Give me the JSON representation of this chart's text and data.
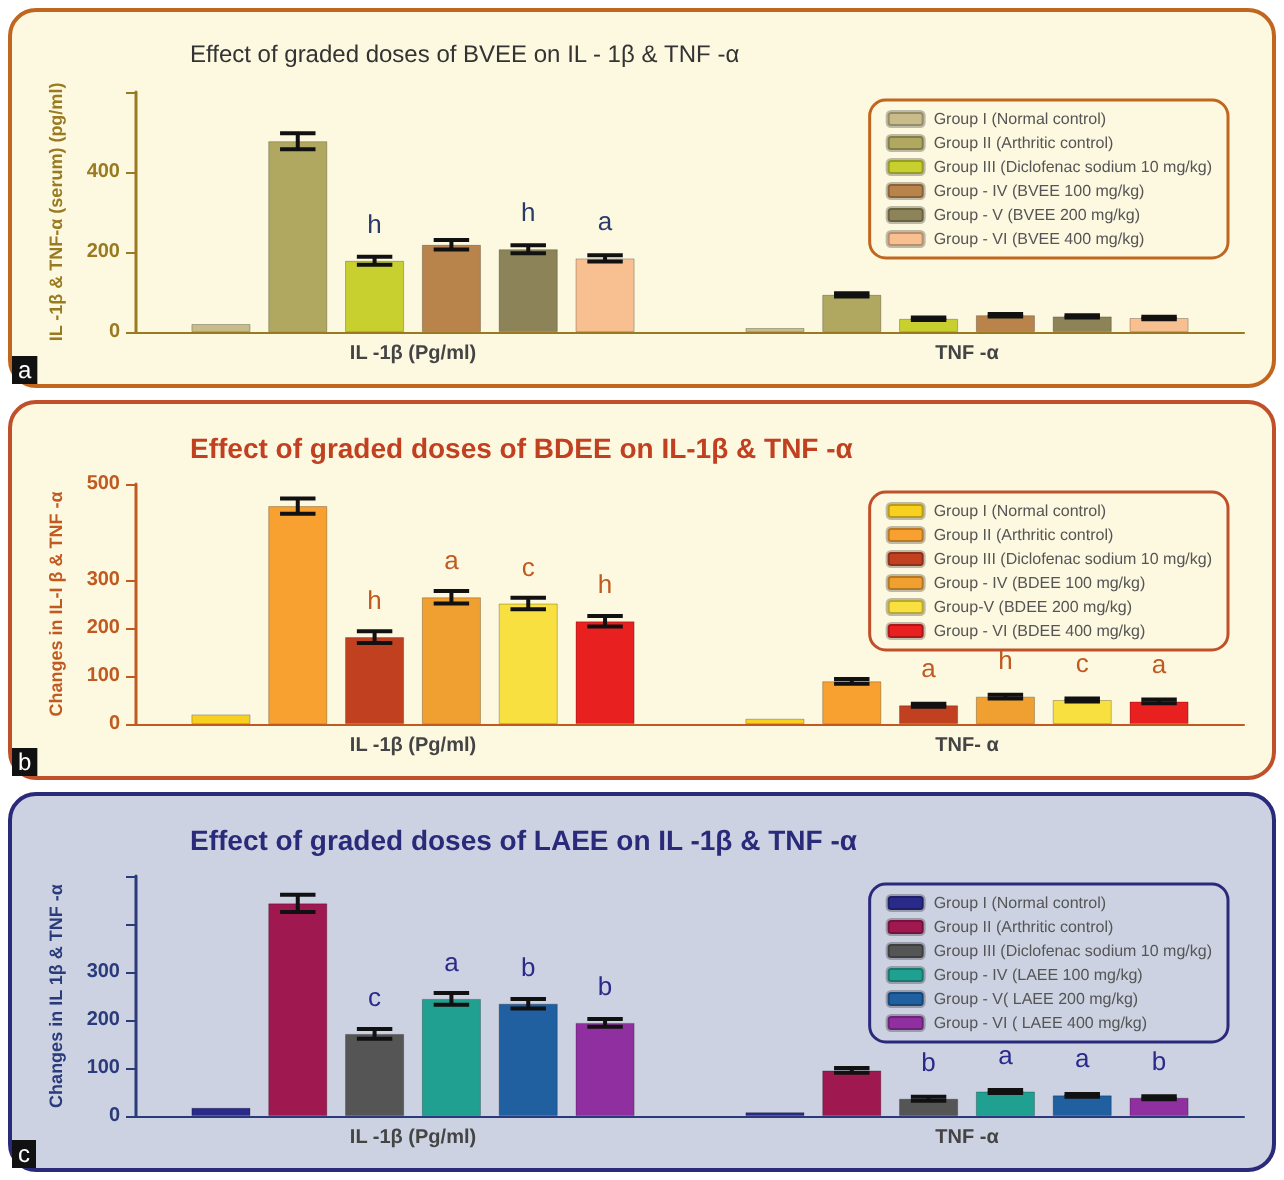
{
  "chart_data": [
    {
      "type": "bar",
      "title": "Effect of graded doses of BVEE on IL - 1β & TNF -α",
      "ylabel": "IL -1β & TNF-α (serum) (pg/ml)",
      "categories": [
        "IL -1β (Pg/ml)",
        "TNF -α"
      ],
      "series": [
        {
          "name": "Group I (Normal control)",
          "color": "#c8bd8a",
          "values": [
            20,
            10
          ]
        },
        {
          "name": "Group II (Arthritic control)",
          "color": "#b0a860",
          "values": [
            477,
            93
          ],
          "errors": [
            20,
            4
          ]
        },
        {
          "name": "Group III (Diclofenac sodium 10 mg/kg)",
          "color": "#c8d030",
          "values": [
            178,
            33
          ],
          "errors": [
            10,
            3
          ],
          "value_labels": [
            "h",
            null
          ]
        },
        {
          "name": "Group - IV (BVEE 100 mg/kg)",
          "color": "#b8844c",
          "values": [
            218,
            42
          ],
          "errors": [
            12,
            3
          ]
        },
        {
          "name": "Group - V (BVEE 200 mg/kg)",
          "color": "#8c8458",
          "values": [
            207,
            39
          ],
          "errors": [
            10,
            3
          ],
          "value_labels": [
            "h",
            null
          ]
        },
        {
          "name": "Group - VI (BVEE 400 mg/kg)",
          "color": "#f8c090",
          "values": [
            184,
            35
          ],
          "errors": [
            8,
            3
          ],
          "value_labels": [
            "a",
            null
          ]
        }
      ],
      "ylim": [
        0,
        600
      ],
      "yticks": [
        0,
        200,
        400,
        {
          "value": 600,
          "label": null
        }
      ],
      "legend": "top right",
      "annotations": [
        "a"
      ]
    },
    {
      "type": "bar",
      "title": "Effect of graded doses of BDEE on IL-1β & TNF -α",
      "ylabel": "Changes in IL-I β & TNF -α",
      "categories": [
        "IL -1β (Pg/ml)",
        "TNF- α"
      ],
      "series": [
        {
          "name": "Group I (Normal control)",
          "color": "#f8d020",
          "values": [
            20,
            11
          ]
        },
        {
          "name": "Group II (Arthritic control)",
          "color": "#f8a030",
          "values": [
            454,
            89
          ],
          "errors": [
            16,
            5
          ]
        },
        {
          "name": "Group III (Diclofenac sodium 10 mg/kg)",
          "color": "#c04020",
          "values": [
            181,
            39
          ],
          "errors": [
            12,
            3
          ],
          "value_labels": [
            "h",
            "a"
          ]
        },
        {
          "name": "Group - IV (BDEE 100 mg/kg)",
          "color": "#f0a030",
          "values": [
            264,
            57
          ],
          "errors": [
            13,
            4
          ],
          "value_labels": [
            "a",
            "h"
          ]
        },
        {
          "name": "Group-V (BDEE 200 mg/kg)",
          "color": "#f8e040",
          "values": [
            251,
            50
          ],
          "errors": [
            12,
            3
          ],
          "value_labels": [
            "c",
            "c"
          ]
        },
        {
          "name": "Group - VI (BDEE 400 mg/kg)",
          "color": "#e82020",
          "values": [
            214,
            47
          ],
          "errors": [
            11,
            4
          ],
          "value_labels": [
            "h",
            "a"
          ]
        }
      ],
      "ylim": [
        0,
        500
      ],
      "yticks": [
        0,
        100,
        200,
        300,
        500
      ],
      "legend": "top right",
      "annotations": [
        "b"
      ]
    },
    {
      "type": "bar",
      "title": "Effect of graded doses of LAEE on IL -1β & TNF -α",
      "ylabel": "Changes in IL 1β & TNF -α",
      "categories": [
        "IL -1β (Pg/ml)",
        "TNF -α"
      ],
      "series": [
        {
          "name": "Group I (Normal control)",
          "color": "#2a2a8a",
          "values": [
            17,
            8
          ]
        },
        {
          "name": "Group II (Arthritic control)",
          "color": "#a01850",
          "values": [
            443,
            95
          ],
          "errors": [
            18,
            5
          ]
        },
        {
          "name": "Group III (Diclofenac sodium 10 mg/kg)",
          "color": "#555555",
          "values": [
            171,
            36
          ],
          "errors": [
            10,
            4
          ],
          "value_labels": [
            "c",
            "b"
          ]
        },
        {
          "name": "Group - IV (LAEE 100 mg/kg)",
          "color": "#20a090",
          "values": [
            244,
            51
          ],
          "errors": [
            12,
            3
          ],
          "value_labels": [
            "a",
            "a"
          ]
        },
        {
          "name": "Group - V( LAEE 200 mg/kg)",
          "color": "#2060a0",
          "values": [
            234,
            43
          ],
          "errors": [
            10,
            3
          ],
          "value_labels": [
            "b",
            "a"
          ]
        },
        {
          "name": "Group - VI ( LAEE 400 mg/kg)",
          "color": "#9030a0",
          "values": [
            194,
            38
          ],
          "errors": [
            8,
            3
          ],
          "value_labels": [
            "b",
            "b"
          ]
        }
      ],
      "ylim": [
        0,
        500
      ],
      "yticks": [
        0,
        100,
        200,
        300,
        {
          "value": 400,
          "label": null
        },
        {
          "value": 500,
          "label": null
        }
      ],
      "legend": "top right",
      "annotations": [
        "c"
      ]
    }
  ]
}
